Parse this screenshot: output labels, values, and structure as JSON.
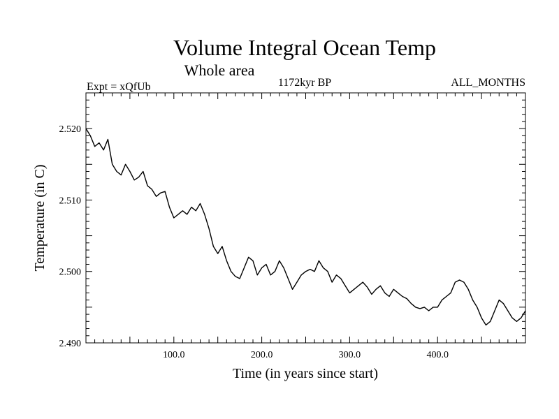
{
  "chart_data": {
    "type": "line",
    "title": "Volume Integral Ocean Temp",
    "subtitle": "Whole area",
    "left_label": "Expt = xQfUb",
    "center_label": "1172kyr BP",
    "right_label": "ALL_MONTHS",
    "xlabel": "Time (in years since start)",
    "ylabel": "Temperature (in C)",
    "xlim": [
      0,
      500
    ],
    "ylim": [
      2.49,
      2.525
    ],
    "x_ticks": [
      100,
      200,
      300,
      400
    ],
    "x_tick_labels": [
      "100.0",
      "200.0",
      "300.0",
      "400.0"
    ],
    "y_ticks": [
      2.49,
      2.5,
      2.51,
      2.52
    ],
    "y_tick_labels": [
      "2.490",
      "2.500",
      "2.510",
      "2.520"
    ],
    "series": [
      {
        "name": "Volume integral ocean temperature",
        "color": "#000000",
        "x": [
          0,
          5,
          10,
          15,
          20,
          25,
          30,
          35,
          40,
          45,
          50,
          55,
          60,
          65,
          70,
          75,
          80,
          85,
          90,
          95,
          100,
          105,
          110,
          115,
          120,
          125,
          130,
          135,
          140,
          145,
          150,
          155,
          160,
          165,
          170,
          175,
          180,
          185,
          190,
          195,
          200,
          205,
          210,
          215,
          220,
          225,
          230,
          235,
          240,
          245,
          250,
          255,
          260,
          265,
          270,
          275,
          280,
          285,
          290,
          295,
          300,
          305,
          310,
          315,
          320,
          325,
          330,
          335,
          340,
          345,
          350,
          355,
          360,
          365,
          370,
          375,
          380,
          385,
          390,
          395,
          400,
          405,
          410,
          415,
          420,
          425,
          430,
          435,
          440,
          445,
          450,
          455,
          460,
          465,
          470,
          475,
          480,
          485,
          490,
          495,
          500
        ],
        "values": [
          2.52,
          2.519,
          2.5175,
          2.518,
          2.517,
          2.5185,
          2.515,
          2.514,
          2.5135,
          2.515,
          2.514,
          2.5128,
          2.5132,
          2.514,
          2.512,
          2.5115,
          2.5105,
          2.511,
          2.5112,
          2.509,
          2.5075,
          2.508,
          2.5085,
          2.508,
          2.509,
          2.5085,
          2.5095,
          2.508,
          2.506,
          2.5035,
          2.5025,
          2.5035,
          2.5015,
          2.5,
          2.4993,
          2.499,
          2.5005,
          2.502,
          2.5015,
          2.4995,
          2.5005,
          2.501,
          2.4995,
          2.5,
          2.5015,
          2.5005,
          2.499,
          2.4975,
          2.4985,
          2.4995,
          2.5,
          2.5003,
          2.5,
          2.5015,
          2.5005,
          2.5,
          2.4985,
          2.4995,
          2.499,
          2.498,
          2.497,
          2.4975,
          2.498,
          2.4985,
          2.4978,
          2.4968,
          2.4975,
          2.498,
          2.497,
          2.4965,
          2.4975,
          2.497,
          2.4965,
          2.4962,
          2.4955,
          2.495,
          2.4948,
          2.495,
          2.4945,
          2.495,
          2.495,
          2.496,
          2.4965,
          2.497,
          2.4985,
          2.4988,
          2.4985,
          2.4975,
          2.496,
          2.495,
          2.4935,
          2.4925,
          2.493,
          2.4945,
          2.496,
          2.4955,
          2.4945,
          2.4935,
          2.493,
          2.4935,
          2.4945
        ]
      }
    ]
  }
}
